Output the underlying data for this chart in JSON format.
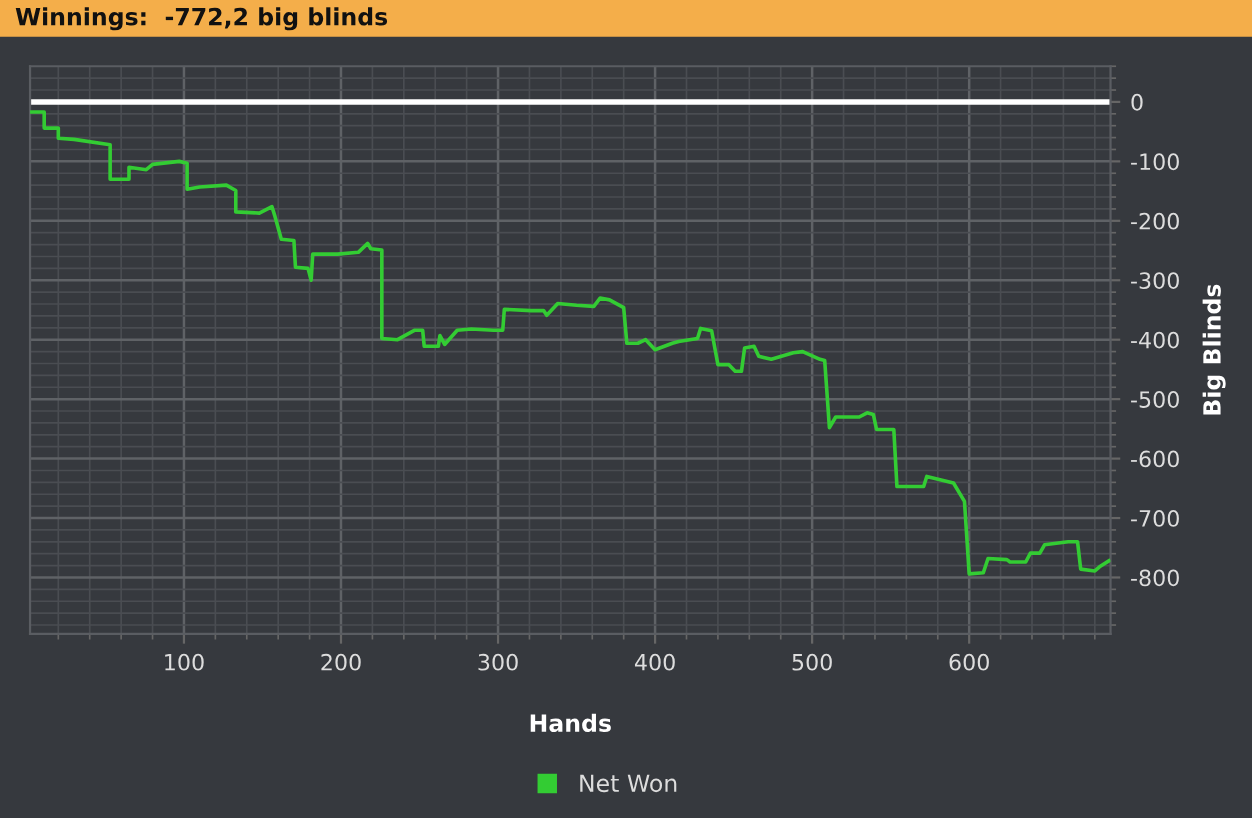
{
  "chart_data": {
    "type": "line",
    "title": "Winnings:  -772,2 big blinds",
    "xlabel": "Hands",
    "ylabel": "Big Blinds",
    "xlim": [
      2,
      690
    ],
    "ylim": [
      -895,
      60
    ],
    "xticks": [
      100,
      200,
      300,
      400,
      500,
      600
    ],
    "yticks": [
      0,
      -100,
      -200,
      -300,
      -400,
      -500,
      -600,
      -700,
      -800
    ],
    "grid": true,
    "legend": "bottom",
    "line_style": "solid",
    "marker": "none",
    "ref_lines": [
      {
        "axis": "y",
        "value": 0,
        "color": "#ffffff"
      }
    ],
    "series": [
      {
        "name": "Net Won",
        "color": "#33cc33",
        "x": [
          3,
          11,
          11,
          20,
          20,
          30,
          53,
          53,
          65,
          65,
          76,
          80,
          97,
          102,
          102,
          110,
          127,
          133,
          133,
          148,
          156,
          158,
          162,
          170,
          171,
          179,
          181,
          182,
          198,
          211,
          217,
          219,
          226,
          226,
          236,
          247,
          252,
          253,
          262,
          263,
          266,
          274,
          283,
          297,
          303,
          304,
          321,
          329,
          331,
          338,
          350,
          361,
          365,
          371,
          380,
          382,
          389,
          394,
          400,
          411,
          415,
          427,
          429,
          436,
          440,
          447,
          451,
          455,
          457,
          463,
          466,
          474,
          488,
          494,
          505,
          508,
          511,
          515,
          530,
          535,
          539,
          541,
          552,
          554,
          571,
          573,
          590,
          597,
          600,
          609,
          612,
          624,
          626,
          636,
          639,
          645,
          648,
          663,
          669,
          671,
          680,
          683,
          689
        ],
        "values": [
          -17,
          -17,
          -44,
          -44,
          -61,
          -63,
          -72,
          -130,
          -130,
          -110,
          -114,
          -105,
          -100,
          -103,
          -147,
          -143,
          -140,
          -149,
          -185,
          -187,
          -176,
          -193,
          -231,
          -233,
          -278,
          -280,
          -300,
          -256,
          -256,
          -253,
          -238,
          -247,
          -249,
          -398,
          -400,
          -384,
          -384,
          -411,
          -411,
          -393,
          -408,
          -384,
          -382,
          -384,
          -384,
          -349,
          -351,
          -351,
          -359,
          -339,
          -342,
          -344,
          -330,
          -333,
          -346,
          -406,
          -406,
          -400,
          -417,
          -406,
          -403,
          -398,
          -381,
          -385,
          -442,
          -442,
          -453,
          -453,
          -414,
          -411,
          -428,
          -433,
          -422,
          -420,
          -433,
          -435,
          -548,
          -530,
          -530,
          -523,
          -526,
          -551,
          -551,
          -647,
          -647,
          -630,
          -641,
          -672,
          -794,
          -792,
          -768,
          -770,
          -774,
          -774,
          -759,
          -759,
          -745,
          -740,
          -740,
          -786,
          -789,
          -782,
          -772
        ]
      }
    ]
  }
}
